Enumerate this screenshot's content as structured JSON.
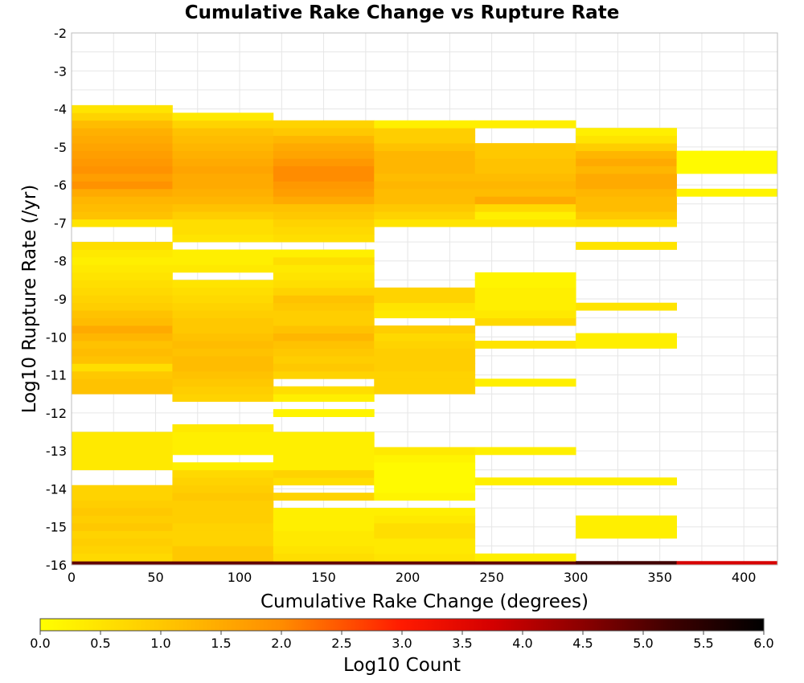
{
  "chart_data": {
    "type": "heatmap",
    "title": "Cumulative Rake Change vs Rupture Rate",
    "xlabel": "Cumulative Rake Change (degrees)",
    "ylabel": "Log10 Rupture Rate (/yr)",
    "xlim": [
      0,
      420
    ],
    "ylim": [
      -16,
      -2
    ],
    "x_ticks": [
      0,
      50,
      100,
      150,
      200,
      250,
      300,
      350,
      400
    ],
    "y_ticks": [
      -2,
      -3,
      -4,
      -5,
      -6,
      -7,
      -8,
      -9,
      -10,
      -11,
      -12,
      -13,
      -14,
      -15,
      -16
    ],
    "grid": true,
    "bin_width_x": 60,
    "bin_height_y": 0.2,
    "colorbar": {
      "label": "Log10 Count",
      "range": [
        0.0,
        6.0
      ],
      "ticks": [
        "0.0",
        "0.5",
        "1.0",
        "1.5",
        "2.0",
        "2.5",
        "3.0",
        "3.5",
        "4.0",
        "4.5",
        "5.0",
        "5.5",
        "6.0"
      ],
      "colors": [
        [
          0.0,
          "#ffff00"
        ],
        [
          1.0,
          "#ffc800"
        ],
        [
          2.0,
          "#ff8c00"
        ],
        [
          2.5,
          "#ff5500"
        ],
        [
          3.0,
          "#ff1a00"
        ],
        [
          3.75,
          "#d40000"
        ],
        [
          4.5,
          "#8b0000"
        ],
        [
          5.25,
          "#3c0000"
        ],
        [
          6.0,
          "#000000"
        ]
      ]
    },
    "series": [
      {
        "x": [
          0,
          60
        ],
        "cells": [
          [
            -16.0,
            4.9
          ],
          [
            -15.8,
            0.7
          ],
          [
            -15.6,
            0.8
          ],
          [
            -15.4,
            0.9
          ],
          [
            -15.2,
            0.8
          ],
          [
            -15.0,
            1.0
          ],
          [
            -14.8,
            0.9
          ],
          [
            -14.6,
            1.0
          ],
          [
            -14.4,
            0.9
          ],
          [
            -14.2,
            0.8
          ],
          [
            -14.0,
            0.8
          ],
          [
            -13.4,
            0.4
          ],
          [
            -13.2,
            0.4
          ],
          [
            -13.0,
            0.4
          ],
          [
            -12.8,
            0.4
          ],
          [
            -12.6,
            0.4
          ],
          [
            -11.4,
            1.1
          ],
          [
            -11.2,
            1.1
          ],
          [
            -11.0,
            1.0
          ],
          [
            -10.8,
            0.6
          ],
          [
            -10.6,
            1.1
          ],
          [
            -10.4,
            1.2
          ],
          [
            -10.2,
            1.1
          ],
          [
            -10.0,
            1.3
          ],
          [
            -9.8,
            1.5
          ],
          [
            -9.6,
            1.2
          ],
          [
            -9.4,
            1.1
          ],
          [
            -9.2,
            0.9
          ],
          [
            -9.0,
            0.8
          ],
          [
            -8.8,
            0.7
          ],
          [
            -8.6,
            0.6
          ],
          [
            -8.4,
            0.5
          ],
          [
            -8.2,
            0.4
          ],
          [
            -8.0,
            0.3
          ],
          [
            -7.8,
            0.4
          ],
          [
            -7.6,
            0.6
          ],
          [
            -7.0,
            0.5
          ],
          [
            -6.8,
            1.1
          ],
          [
            -6.6,
            1.2
          ],
          [
            -6.4,
            1.3
          ],
          [
            -6.2,
            1.5
          ],
          [
            -6.0,
            1.9
          ],
          [
            -5.8,
            1.7
          ],
          [
            -5.6,
            1.9
          ],
          [
            -5.4,
            1.8
          ],
          [
            -5.2,
            1.7
          ],
          [
            -5.0,
            1.6
          ],
          [
            -4.8,
            1.5
          ],
          [
            -4.6,
            1.4
          ],
          [
            -4.4,
            1.2
          ],
          [
            -4.2,
            0.8
          ],
          [
            -4.0,
            0.5
          ]
        ]
      },
      {
        "x": [
          60,
          120
        ],
        "cells": [
          [
            -16.0,
            4.9
          ],
          [
            -15.8,
            1.0
          ],
          [
            -15.6,
            1.0
          ],
          [
            -15.4,
            0.8
          ],
          [
            -15.2,
            0.8
          ],
          [
            -15.0,
            0.8
          ],
          [
            -14.8,
            0.9
          ],
          [
            -14.6,
            0.9
          ],
          [
            -14.4,
            0.9
          ],
          [
            -14.2,
            1.0
          ],
          [
            -14.0,
            0.9
          ],
          [
            -13.8,
            0.8
          ],
          [
            -13.6,
            0.7
          ],
          [
            -13.4,
            0.3
          ],
          [
            -13.0,
            0.3
          ],
          [
            -12.8,
            0.3
          ],
          [
            -12.6,
            0.3
          ],
          [
            -12.4,
            0.4
          ],
          [
            -11.6,
            0.8
          ],
          [
            -11.4,
            0.9
          ],
          [
            -11.2,
            1.0
          ],
          [
            -11.0,
            1.1
          ],
          [
            -10.8,
            1.2
          ],
          [
            -10.6,
            1.2
          ],
          [
            -10.4,
            1.1
          ],
          [
            -10.2,
            1.2
          ],
          [
            -10.0,
            1.1
          ],
          [
            -9.8,
            1.0
          ],
          [
            -9.6,
            1.0
          ],
          [
            -9.4,
            0.9
          ],
          [
            -9.2,
            0.8
          ],
          [
            -9.0,
            0.7
          ],
          [
            -8.8,
            0.6
          ],
          [
            -8.6,
            0.5
          ],
          [
            -8.2,
            0.4
          ],
          [
            -8.0,
            0.3
          ],
          [
            -7.8,
            0.3
          ],
          [
            -7.4,
            0.5
          ],
          [
            -7.2,
            0.6
          ],
          [
            -7.0,
            0.6
          ],
          [
            -6.8,
            0.9
          ],
          [
            -6.6,
            1.1
          ],
          [
            -6.4,
            1.3
          ],
          [
            -6.2,
            1.4
          ],
          [
            -6.0,
            1.5
          ],
          [
            -5.8,
            1.5
          ],
          [
            -5.6,
            1.6
          ],
          [
            -5.4,
            1.5
          ],
          [
            -5.2,
            1.4
          ],
          [
            -5.0,
            1.3
          ],
          [
            -4.8,
            1.2
          ],
          [
            -4.6,
            1.1
          ],
          [
            -4.4,
            0.8
          ],
          [
            -4.2,
            0.4
          ]
        ]
      },
      {
        "x": [
          120,
          180
        ],
        "cells": [
          [
            -16.0,
            4.9
          ],
          [
            -15.8,
            0.6
          ],
          [
            -15.6,
            0.5
          ],
          [
            -15.4,
            0.4
          ],
          [
            -15.2,
            0.4
          ],
          [
            -15.0,
            0.3
          ],
          [
            -14.8,
            0.3
          ],
          [
            -14.6,
            0.3
          ],
          [
            -14.2,
            0.8
          ],
          [
            -13.8,
            0.6
          ],
          [
            -13.6,
            0.8
          ],
          [
            -13.4,
            0.3
          ],
          [
            -13.2,
            0.3
          ],
          [
            -13.0,
            0.3
          ],
          [
            -12.8,
            0.3
          ],
          [
            -12.6,
            0.3
          ],
          [
            -12.0,
            0.2
          ],
          [
            -11.6,
            0.3
          ],
          [
            -11.4,
            0.6
          ],
          [
            -11.0,
            0.8
          ],
          [
            -10.8,
            1.0
          ],
          [
            -10.6,
            0.9
          ],
          [
            -10.4,
            1.0
          ],
          [
            -10.2,
            1.1
          ],
          [
            -10.0,
            1.3
          ],
          [
            -9.8,
            1.1
          ],
          [
            -9.6,
            0.9
          ],
          [
            -9.4,
            0.9
          ],
          [
            -9.2,
            1.0
          ],
          [
            -9.0,
            1.1
          ],
          [
            -8.8,
            0.8
          ],
          [
            -8.6,
            0.6
          ],
          [
            -8.4,
            0.5
          ],
          [
            -8.2,
            0.4
          ],
          [
            -8.0,
            0.6
          ],
          [
            -7.8,
            0.3
          ],
          [
            -7.4,
            0.6
          ],
          [
            -7.2,
            0.7
          ],
          [
            -7.0,
            0.8
          ],
          [
            -6.8,
            1.0
          ],
          [
            -6.6,
            1.1
          ],
          [
            -6.4,
            1.5
          ],
          [
            -6.2,
            1.7
          ],
          [
            -6.0,
            1.8
          ],
          [
            -5.8,
            2.0
          ],
          [
            -5.6,
            2.0
          ],
          [
            -5.4,
            1.8
          ],
          [
            -5.2,
            1.6
          ],
          [
            -5.0,
            1.5
          ],
          [
            -4.8,
            1.3
          ],
          [
            -4.6,
            1.0
          ],
          [
            -4.4,
            0.8
          ]
        ]
      },
      {
        "x": [
          180,
          240
        ],
        "cells": [
          [
            -16.0,
            4.9
          ],
          [
            -15.8,
            0.5
          ],
          [
            -15.6,
            0.4
          ],
          [
            -15.4,
            0.4
          ],
          [
            -15.2,
            0.6
          ],
          [
            -15.0,
            0.6
          ],
          [
            -14.8,
            0.4
          ],
          [
            -14.6,
            0.3
          ],
          [
            -14.2,
            0.2
          ],
          [
            -14.0,
            0.1
          ],
          [
            -13.8,
            0.1
          ],
          [
            -13.6,
            0.1
          ],
          [
            -13.4,
            0.1
          ],
          [
            -13.2,
            0.2
          ],
          [
            -13.0,
            0.4
          ],
          [
            -11.4,
            0.8
          ],
          [
            -11.2,
            0.8
          ],
          [
            -11.0,
            0.8
          ],
          [
            -10.8,
            0.9
          ],
          [
            -10.6,
            0.9
          ],
          [
            -10.4,
            0.9
          ],
          [
            -10.2,
            0.8
          ],
          [
            -10.0,
            0.7
          ],
          [
            -9.8,
            0.9
          ],
          [
            -9.4,
            0.4
          ],
          [
            -9.2,
            0.5
          ],
          [
            -9.0,
            0.8
          ],
          [
            -8.8,
            0.8
          ],
          [
            -7.0,
            0.5
          ],
          [
            -6.8,
            0.8
          ],
          [
            -6.6,
            1.0
          ],
          [
            -6.4,
            1.2
          ],
          [
            -6.2,
            1.2
          ],
          [
            -6.0,
            1.3
          ],
          [
            -5.8,
            1.2
          ],
          [
            -5.6,
            1.3
          ],
          [
            -5.4,
            1.3
          ],
          [
            -5.2,
            1.3
          ],
          [
            -5.0,
            1.1
          ],
          [
            -4.8,
            0.9
          ],
          [
            -4.6,
            0.9
          ],
          [
            -4.4,
            0.3
          ]
        ]
      },
      {
        "x": [
          240,
          300
        ],
        "cells": [
          [
            -16.0,
            4.9
          ],
          [
            -15.8,
            0.3
          ],
          [
            -13.8,
            0.3
          ],
          [
            -13.0,
            0.3
          ],
          [
            -11.2,
            0.3
          ],
          [
            -10.2,
            0.5
          ],
          [
            -9.6,
            0.7
          ],
          [
            -9.4,
            0.4
          ],
          [
            -9.2,
            0.3
          ],
          [
            -9.0,
            0.3
          ],
          [
            -8.8,
            0.3
          ],
          [
            -8.6,
            0.2
          ],
          [
            -8.4,
            0.2
          ],
          [
            -7.0,
            0.5
          ],
          [
            -6.8,
            0.3
          ],
          [
            -6.6,
            0.7
          ],
          [
            -6.4,
            1.5
          ],
          [
            -6.2,
            1.2
          ],
          [
            -6.0,
            1.3
          ],
          [
            -5.8,
            1.2
          ],
          [
            -5.6,
            1.1
          ],
          [
            -5.4,
            1.1
          ],
          [
            -5.2,
            1.0
          ],
          [
            -5.0,
            1.0
          ],
          [
            -4.4,
            0.3
          ]
        ]
      },
      {
        "x": [
          300,
          360
        ],
        "cells": [
          [
            -16.0,
            5.2
          ],
          [
            -15.2,
            0.3
          ],
          [
            -15.0,
            0.3
          ],
          [
            -14.8,
            0.3
          ],
          [
            -13.8,
            0.3
          ],
          [
            -10.2,
            0.3
          ],
          [
            -10.0,
            0.3
          ],
          [
            -9.2,
            0.5
          ],
          [
            -7.6,
            0.5
          ],
          [
            -7.0,
            0.6
          ],
          [
            -6.8,
            1.0
          ],
          [
            -6.6,
            1.2
          ],
          [
            -6.4,
            1.2
          ],
          [
            -6.2,
            1.3
          ],
          [
            -6.0,
            1.5
          ],
          [
            -5.8,
            1.5
          ],
          [
            -5.6,
            1.3
          ],
          [
            -5.4,
            1.5
          ],
          [
            -5.2,
            1.3
          ],
          [
            -5.0,
            0.9
          ],
          [
            -4.8,
            0.5
          ],
          [
            -4.6,
            0.3
          ]
        ]
      },
      {
        "x": [
          360,
          420
        ],
        "cells": [
          [
            -16.0,
            3.7
          ],
          [
            -6.2,
            0.2
          ],
          [
            -5.6,
            0.1
          ],
          [
            -5.4,
            0.1
          ],
          [
            -5.2,
            0.1
          ]
        ]
      }
    ]
  }
}
